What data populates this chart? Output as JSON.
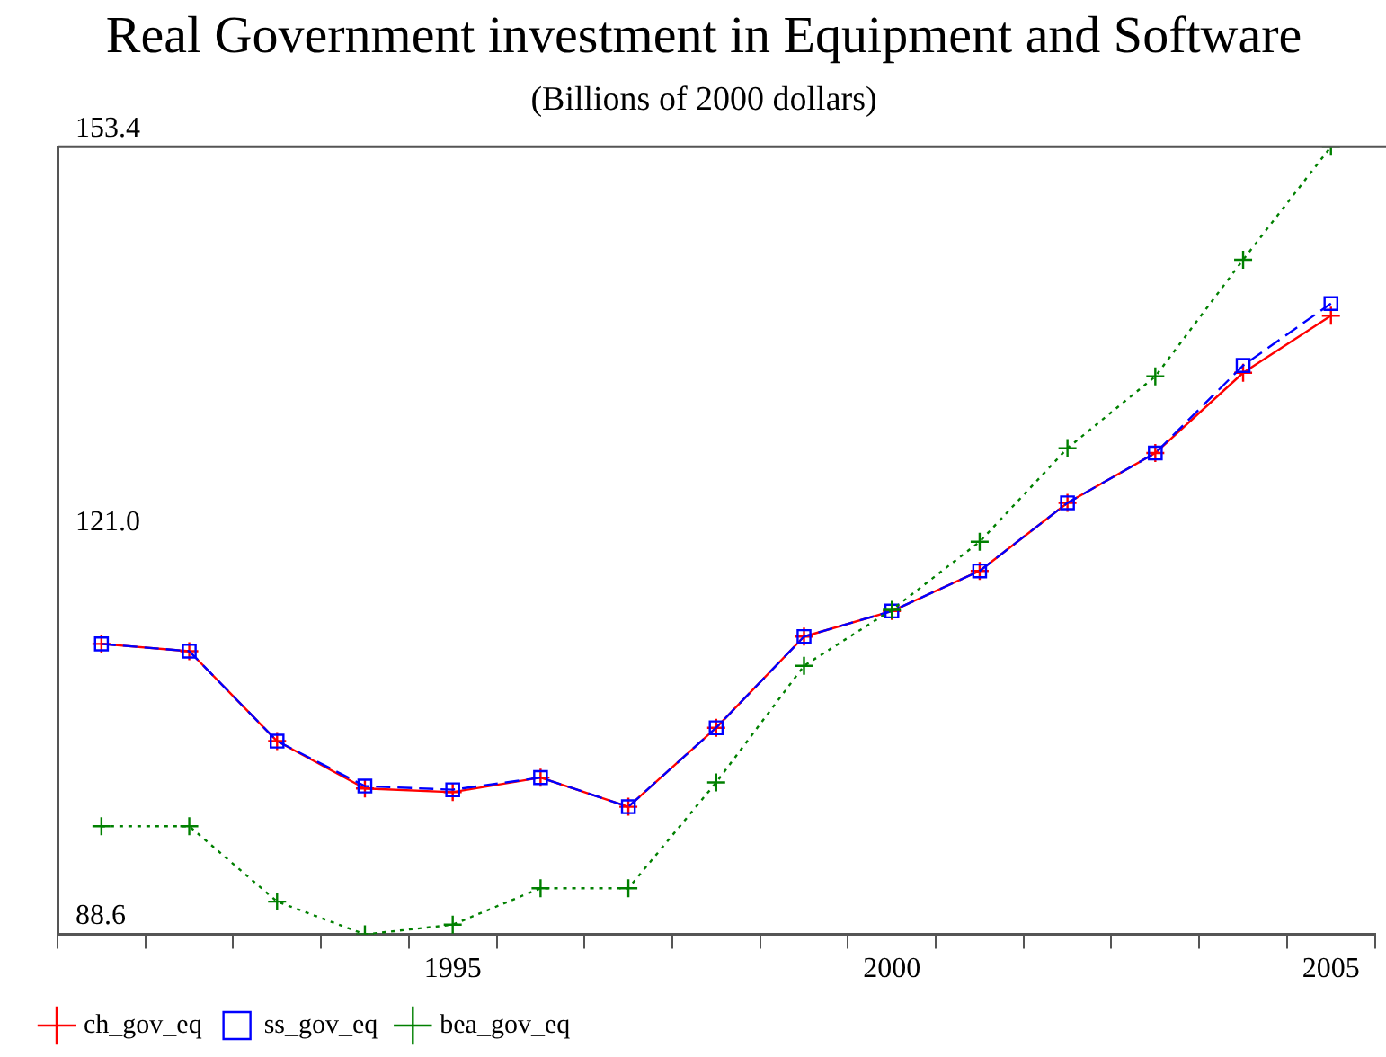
{
  "chart_data": {
    "type": "line",
    "title": "Real Government investment in Equipment and Software",
    "subtitle": "(Billions of 2000 dollars)",
    "categories": [
      null,
      null,
      null,
      null,
      "1995",
      null,
      null,
      null,
      null,
      "2000",
      null,
      null,
      null,
      null,
      "2005"
    ],
    "ylim": [
      88.6,
      153.4
    ],
    "yticks": [
      88.6,
      {
        "value": 121,
        "label": "121.0"
      },
      153.4
    ],
    "grid": false,
    "legend": "bottom left",
    "series": [
      {
        "name": "ch_gov_eq",
        "color": "#ff0000",
        "marker": "cross",
        "line_style": "solid",
        "values": [
          112.5,
          111.9,
          104.5,
          100.6,
          100.3,
          101.5,
          99.1,
          105.6,
          113.1,
          115.2,
          118.5,
          124.1,
          128.2,
          134.8,
          139.5
        ]
      },
      {
        "name": "ss_gov_eq",
        "color": "#0000ff",
        "marker": "square",
        "line_style": "dashed",
        "values": [
          112.5,
          111.9,
          104.5,
          100.8,
          100.5,
          101.5,
          99.1,
          105.6,
          113.1,
          115.2,
          118.5,
          124.1,
          128.2,
          135.4,
          140.5
        ]
      },
      {
        "name": "bea_gov_eq",
        "color": "#008000",
        "marker": "cross",
        "line_style": "dotted",
        "values": [
          97.5,
          97.5,
          91.3,
          88.6,
          89.4,
          92.4,
          92.4,
          101.1,
          110.7,
          115.3,
          120.9,
          128.6,
          134.5,
          144.1,
          153.4
        ]
      }
    ]
  }
}
